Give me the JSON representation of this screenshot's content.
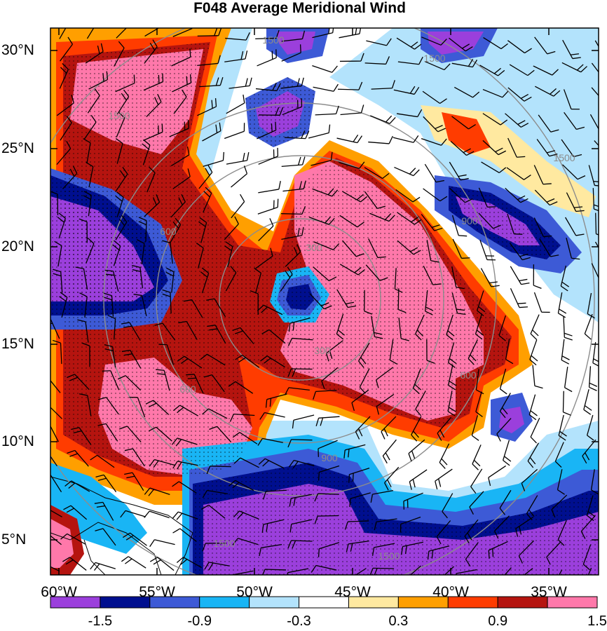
{
  "title": "F048 Average Meridional Wind",
  "lat_labels": [
    "30°N",
    "25°N",
    "20°N",
    "15°N",
    "10°N",
    "5°N"
  ],
  "lon_labels": [
    "60°W",
    "55°W",
    "50°W",
    "45°W",
    "40°W",
    "35°W"
  ],
  "ring_labels": [
    "300",
    "600",
    "900",
    "1500"
  ],
  "colorbar": {
    "colors": [
      "#9b3fdc",
      "#000f8f",
      "#3d5ad6",
      "#19b5f5",
      "#b3e3fc",
      "#ffffff",
      "#ffe9a0",
      "#ff9f00",
      "#ff3c00",
      "#b5140f",
      "#ff78aa"
    ],
    "labels": [
      "-1.5",
      "-0.9",
      "-0.3",
      "0.3",
      "0.9",
      "1.5"
    ]
  }
}
